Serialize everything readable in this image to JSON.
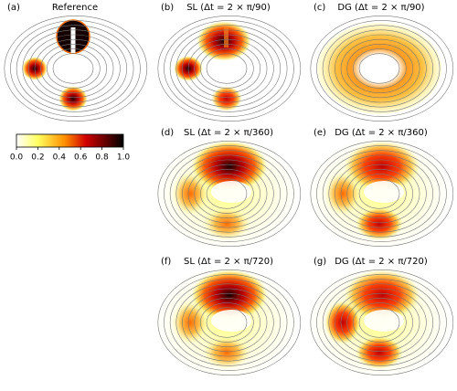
{
  "panels": [
    {
      "label": "(a)",
      "title": "Reference"
    },
    {
      "label": "(b)",
      "title": "SL (Δt = 2 × π/90)"
    },
    {
      "label": "(c)",
      "title": "DG (Δt = 2 × π/90)"
    },
    {
      "label": "(d)",
      "title": "SL (Δt = 2 × π/360)"
    },
    {
      "label": "(e)",
      "title": "DG (Δt = 2 × π/360)"
    },
    {
      "label": "(f)",
      "title": "SL (Δt = 2 × π/720)"
    },
    {
      "label": "(g)",
      "title": "DG (Δt = 2 × π/720)"
    }
  ],
  "colorbar": {
    "lim": [
      0,
      1
    ],
    "ticks": [
      {
        "value": 0,
        "label": "0.0"
      },
      {
        "value": 0.2,
        "label": "0.2"
      },
      {
        "value": 0.4,
        "label": "0.4"
      },
      {
        "value": 0.6,
        "label": "0.6"
      },
      {
        "value": 0.8,
        "label": "0.8"
      },
      {
        "value": 1,
        "label": "1.0"
      }
    ]
  }
}
